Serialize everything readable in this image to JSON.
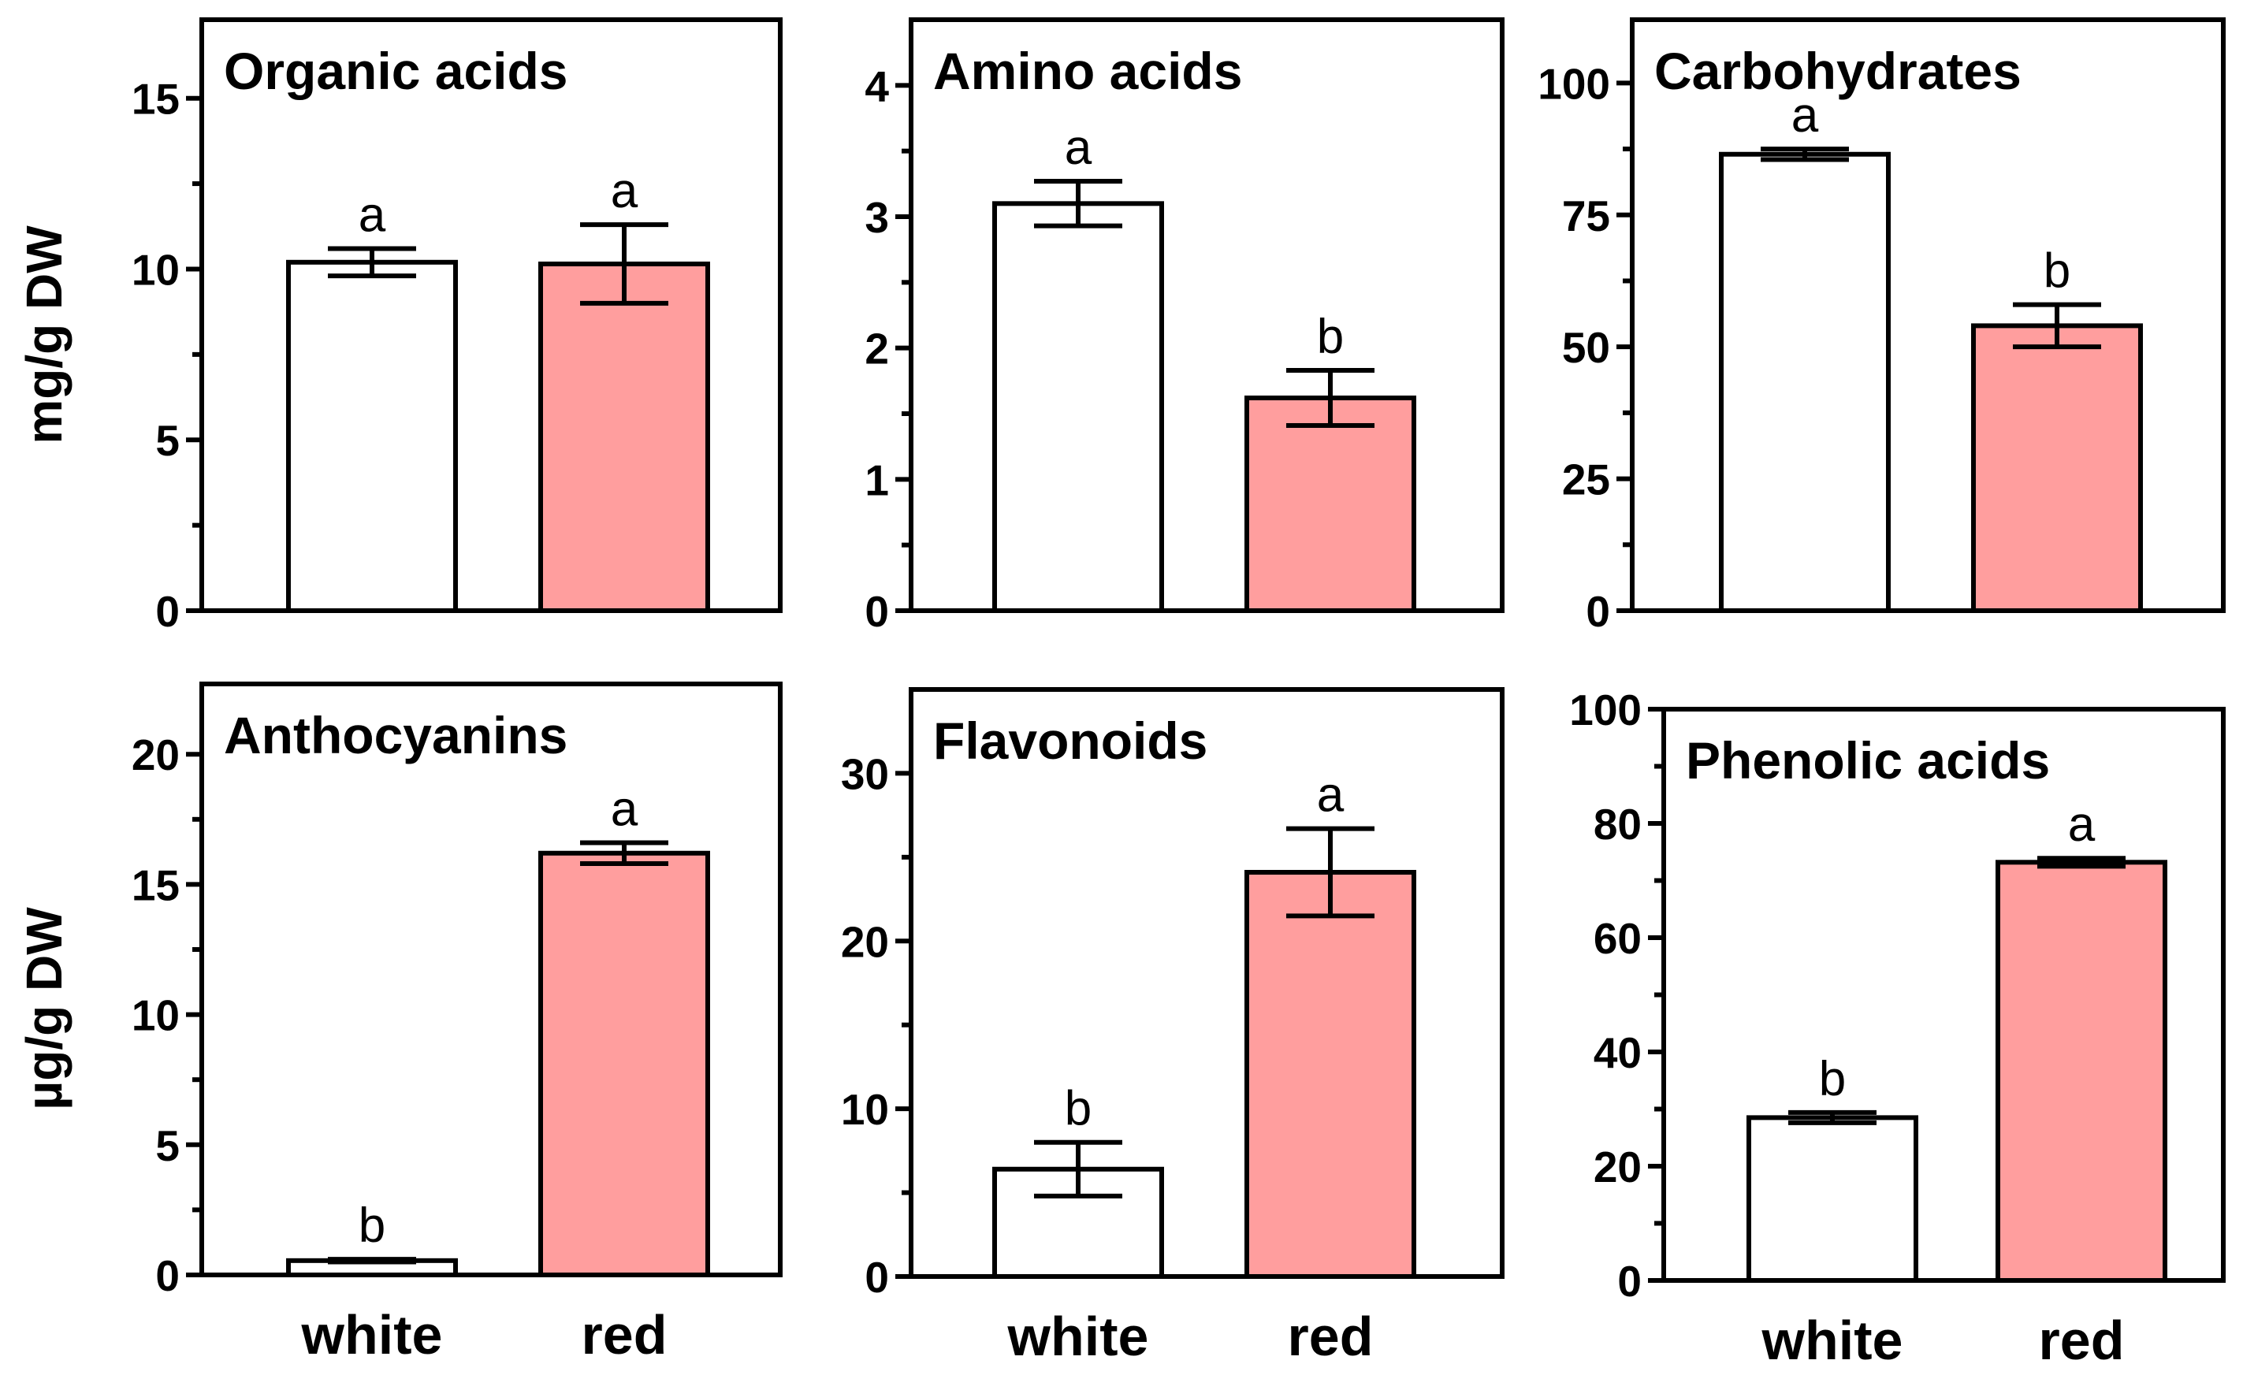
{
  "colors": {
    "white_bar": "#ffffff",
    "red_bar": "#ff9e9e",
    "outline": "#000000"
  },
  "row_titles": {
    "top": "mg/g DW",
    "bottom": "µg/g DW"
  },
  "chart_data": [
    {
      "type": "bar",
      "title": "Organic acids",
      "categories": [
        "white",
        "red"
      ],
      "values": [
        10.2,
        10.15
      ],
      "errors": [
        0.4,
        1.15
      ],
      "letters": [
        "a",
        "a"
      ],
      "ylabel": "mg/g DW",
      "ylim": [
        0,
        17.3
      ],
      "yticks": [
        0,
        5,
        10,
        15
      ],
      "yminor": [
        2.5,
        7.5,
        12.5
      ],
      "show_xlabels": false
    },
    {
      "type": "bar",
      "title": "Amino acids",
      "categories": [
        "white",
        "red"
      ],
      "values": [
        3.1,
        1.62
      ],
      "errors": [
        0.17,
        0.21
      ],
      "letters": [
        "a",
        "b"
      ],
      "ylabel": "",
      "ylim": [
        0,
        4.5
      ],
      "yticks": [
        0,
        1,
        2,
        3,
        4
      ],
      "yminor": [
        0.5,
        1.5,
        2.5,
        3.5
      ],
      "show_xlabels": false
    },
    {
      "type": "bar",
      "title": "Carbohydrates",
      "categories": [
        "white",
        "red"
      ],
      "values": [
        86.5,
        54
      ],
      "errors": [
        1,
        4
      ],
      "letters": [
        "a",
        "b"
      ],
      "ylabel": "",
      "ylim": [
        0,
        112
      ],
      "yticks": [
        0,
        25,
        50,
        75,
        100
      ],
      "yminor": [
        12.5,
        37.5,
        62.5,
        87.5
      ],
      "show_xlabels": false
    },
    {
      "type": "bar",
      "title": "Anthocyanins",
      "categories": [
        "white",
        "red"
      ],
      "values": [
        0.55,
        16.2
      ],
      "errors": [
        0.05,
        0.4
      ],
      "letters": [
        "b",
        "a"
      ],
      "ylabel": "µg/g DW",
      "ylim": [
        0,
        22.7
      ],
      "yticks": [
        0,
        5,
        10,
        15,
        20
      ],
      "yminor": [
        2.5,
        7.5,
        12.5,
        17.5
      ],
      "show_xlabels": true
    },
    {
      "type": "bar",
      "title": "Flavonoids",
      "categories": [
        "white",
        "red"
      ],
      "values": [
        6.4,
        24.1
      ],
      "errors": [
        1.6,
        2.6
      ],
      "letters": [
        "b",
        "a"
      ],
      "ylabel": "",
      "ylim": [
        0,
        35
      ],
      "yticks": [
        0,
        10,
        20,
        30
      ],
      "yminor": [
        5,
        15,
        25
      ],
      "show_xlabels": true
    },
    {
      "type": "bar",
      "title": "Phenolic acids",
      "categories": [
        "white",
        "red"
      ],
      "values": [
        28.5,
        73.2
      ],
      "errors": [
        0.9,
        0.7
      ],
      "letters": [
        "b",
        "a"
      ],
      "ylabel": "",
      "ylim": [
        0,
        100
      ],
      "yticks": [
        0,
        20,
        40,
        60,
        80,
        100
      ],
      "yminor": [
        10,
        30,
        50,
        70,
        90
      ],
      "show_xlabels": true
    }
  ]
}
